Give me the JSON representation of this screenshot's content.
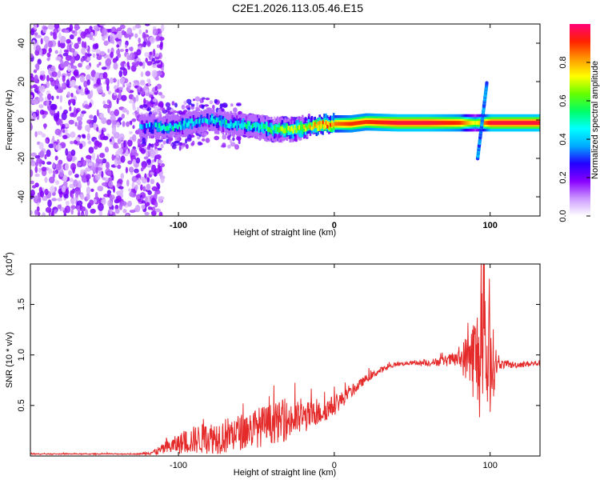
{
  "title": "C2E1.2026.113.05.46.E15",
  "chart_data": [
    {
      "type": "heatmap",
      "xlabel": "Height of straight line (km)",
      "ylabel": "Frequency (Hz)",
      "xlim": [
        -195,
        132
      ],
      "ylim": [
        -50,
        50
      ],
      "xticks": [
        -100,
        0,
        100
      ],
      "yticks": [
        -40,
        -20,
        0,
        20,
        40
      ],
      "colorbar": {
        "label": "Normalized spectral amplitude",
        "range": [
          0,
          1
        ],
        "ticks": [
          0.0,
          0.2,
          0.4,
          0.6,
          0.8
        ],
        "colors": [
          "#ffffff",
          "#cc99ff",
          "#8800ff",
          "#2200ff",
          "#00aaff",
          "#00ffff",
          "#00ff66",
          "#66ff00",
          "#ffff00",
          "#ff9900",
          "#ff2200",
          "#ff0077"
        ]
      },
      "ridge": [
        {
          "x": -120,
          "freq": -3.5,
          "amp": 0.35
        },
        {
          "x": -110,
          "freq": -3.5,
          "amp": 0.45
        },
        {
          "x": -100,
          "freq": -3.0,
          "amp": 0.45
        },
        {
          "x": -90,
          "freq": -1.0,
          "amp": 0.4
        },
        {
          "x": -80,
          "freq": 0.0,
          "amp": 0.4
        },
        {
          "x": -70,
          "freq": -2.0,
          "amp": 0.45
        },
        {
          "x": -60,
          "freq": -2.5,
          "amp": 0.45
        },
        {
          "x": -50,
          "freq": -3.5,
          "amp": 0.5
        },
        {
          "x": -40,
          "freq": -5.0,
          "amp": 0.55
        },
        {
          "x": -30,
          "freq": -5.0,
          "amp": 0.65
        },
        {
          "x": -20,
          "freq": -4.0,
          "amp": 0.7
        },
        {
          "x": -10,
          "freq": -2.5,
          "amp": 0.8
        },
        {
          "x": 0,
          "freq": -2.0,
          "amp": 0.85
        },
        {
          "x": 10,
          "freq": -2.0,
          "amp": 0.9
        },
        {
          "x": 20,
          "freq": -1.0,
          "amp": 0.9
        },
        {
          "x": 40,
          "freq": -1.5,
          "amp": 0.95
        },
        {
          "x": 60,
          "freq": -1.5,
          "amp": 0.95
        },
        {
          "x": 80,
          "freq": -1.5,
          "amp": 0.9
        },
        {
          "x": 90,
          "freq": -1.5,
          "amp": 0.7
        },
        {
          "x": 100,
          "freq": -1.5,
          "amp": 0.95
        },
        {
          "x": 115,
          "freq": -1.5,
          "amp": 0.95
        },
        {
          "x": 132,
          "freq": -1.5,
          "amp": 0.95
        }
      ],
      "spike": {
        "x": 95,
        "freq_min": -20,
        "freq_max": 20
      }
    },
    {
      "type": "line",
      "xlabel": "Height of straight line (km)",
      "ylabel": "SNR (10 * v/v)",
      "yscale_label": "(x10",
      "yscale_exp": "4",
      "yscale_close": ")",
      "xlim": [
        -195,
        132
      ],
      "ylim": [
        0,
        1.9
      ],
      "xticks": [
        -100,
        0,
        100
      ],
      "yticks": [
        0.5,
        1.0,
        1.5
      ],
      "color": "#e52a2a",
      "series": [
        {
          "name": "SNR",
          "x": [
            -195,
            -150,
            -125,
            -115,
            -100,
            -90,
            -80,
            -70,
            -60,
            -50,
            -40,
            -30,
            -20,
            -10,
            0,
            10,
            20,
            30,
            40,
            50,
            60,
            70,
            80,
            85,
            90,
            95,
            100,
            105,
            115,
            132
          ],
          "y": [
            0.02,
            0.02,
            0.02,
            0.04,
            0.12,
            0.16,
            0.18,
            0.2,
            0.24,
            0.28,
            0.32,
            0.35,
            0.38,
            0.42,
            0.5,
            0.62,
            0.76,
            0.85,
            0.91,
            0.92,
            0.92,
            0.94,
            0.96,
            0.97,
            0.98,
            0.95,
            0.92,
            0.91,
            0.9,
            0.92
          ],
          "noise": [
            0.005,
            0.005,
            0.005,
            0.03,
            0.1,
            0.14,
            0.16,
            0.18,
            0.18,
            0.2,
            0.2,
            0.2,
            0.16,
            0.12,
            0.1,
            0.06,
            0.04,
            0.03,
            0.02,
            0.02,
            0.03,
            0.05,
            0.08,
            0.25,
            0.45,
            0.7,
            0.55,
            0.05,
            0.03,
            0.03
          ]
        }
      ]
    }
  ]
}
